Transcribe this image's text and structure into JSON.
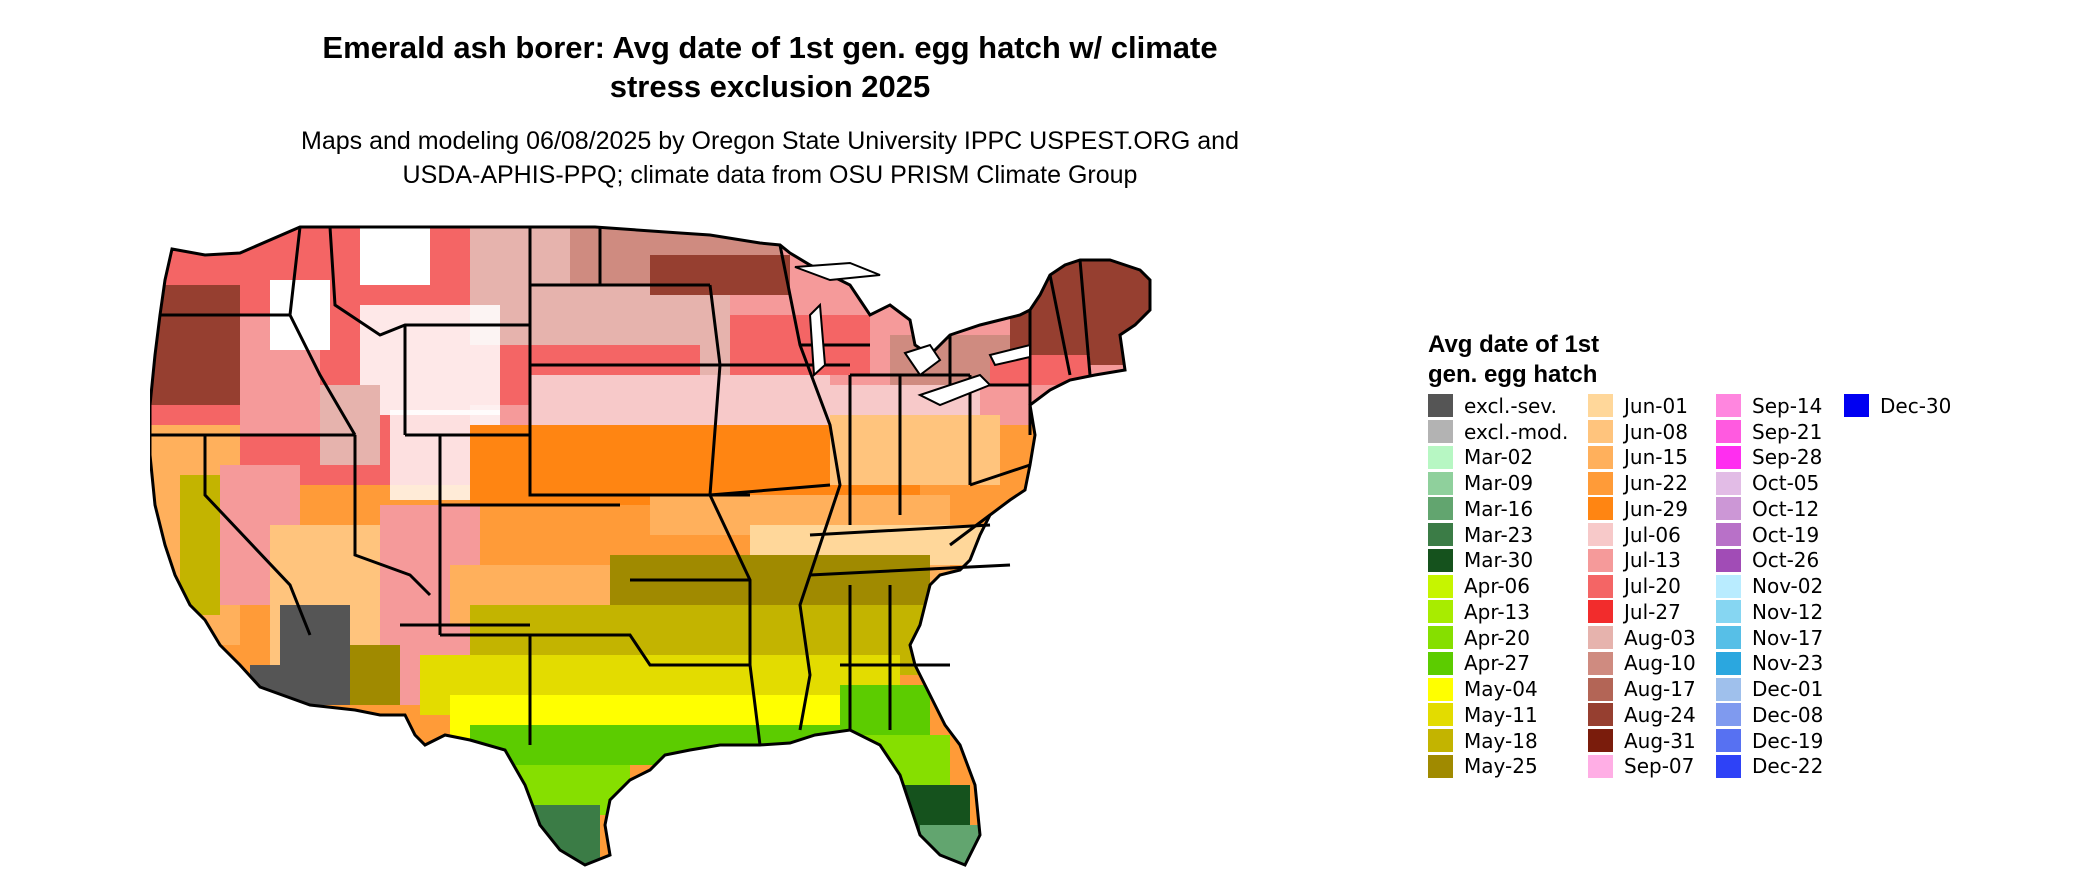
{
  "title": {
    "line1": "Emerald ash borer: Avg date of 1st gen. egg hatch w/ climate",
    "line2": "stress exclusion 2025"
  },
  "subtitle": {
    "line1": "Maps and modeling 06/08/2025 by Oregon State University IPPC USPEST.ORG and",
    "line2": "USDA-APHIS-PPQ; climate data from OSU PRISM Climate Group"
  },
  "legend": {
    "title_line1": "Avg date of 1st",
    "title_line2": "gen. egg hatch",
    "items": [
      {
        "label": "excl.-sev.",
        "color": "#555555"
      },
      {
        "label": "excl.-mod.",
        "color": "#b3b3b3"
      },
      {
        "label": "Mar-02",
        "color": "#b7f7c3"
      },
      {
        "label": "Mar-09",
        "color": "#8fd09c"
      },
      {
        "label": "Mar-16",
        "color": "#62a56f"
      },
      {
        "label": "Mar-23",
        "color": "#3b7c46"
      },
      {
        "label": "Mar-30",
        "color": "#15521d"
      },
      {
        "label": "Apr-06",
        "color": "#c6f500"
      },
      {
        "label": "Apr-13",
        "color": "#a8ec00"
      },
      {
        "label": "Apr-20",
        "color": "#86df00"
      },
      {
        "label": "Apr-27",
        "color": "#5ccc00"
      },
      {
        "label": "May-04",
        "color": "#ffff00"
      },
      {
        "label": "May-11",
        "color": "#e3dc00"
      },
      {
        "label": "May-18",
        "color": "#c3b400"
      },
      {
        "label": "May-25",
        "color": "#a08a00"
      },
      {
        "label": "Jun-01",
        "color": "#ffd79a"
      },
      {
        "label": "Jun-08",
        "color": "#ffc47d"
      },
      {
        "label": "Jun-15",
        "color": "#ffb05c"
      },
      {
        "label": "Jun-22",
        "color": "#ff9b38"
      },
      {
        "label": "Jun-29",
        "color": "#ff8512"
      },
      {
        "label": "Jul-06",
        "color": "#f7c9c9"
      },
      {
        "label": "Jul-13",
        "color": "#f59a9a"
      },
      {
        "label": "Jul-20",
        "color": "#f46565"
      },
      {
        "label": "Jul-27",
        "color": "#f22c2c"
      },
      {
        "label": "Aug-03",
        "color": "#e6b3ad"
      },
      {
        "label": "Aug-10",
        "color": "#cf8b80"
      },
      {
        "label": "Aug-17",
        "color": "#b36556"
      },
      {
        "label": "Aug-24",
        "color": "#963f30"
      },
      {
        "label": "Aug-31",
        "color": "#7a1c0c"
      },
      {
        "label": "Sep-07",
        "color": "#ffaee5"
      },
      {
        "label": "Sep-14",
        "color": "#ff86df"
      },
      {
        "label": "Sep-21",
        "color": "#ff5ae0"
      },
      {
        "label": "Sep-28",
        "color": "#ff2ef0"
      },
      {
        "label": "Oct-05",
        "color": "#e2bce6"
      },
      {
        "label": "Oct-12",
        "color": "#cc97d6"
      },
      {
        "label": "Oct-19",
        "color": "#b871c8"
      },
      {
        "label": "Oct-26",
        "color": "#a14cb6"
      },
      {
        "label": "Nov-02",
        "color": "#b9ecff"
      },
      {
        "label": "Nov-12",
        "color": "#86d6f2"
      },
      {
        "label": "Nov-17",
        "color": "#57bfe7"
      },
      {
        "label": "Nov-23",
        "color": "#2ba7df"
      },
      {
        "label": "Dec-01",
        "color": "#9fc0ec"
      },
      {
        "label": "Dec-08",
        "color": "#7f9aef"
      },
      {
        "label": "Dec-19",
        "color": "#5771f2"
      },
      {
        "label": "Dec-22",
        "color": "#2e42f7"
      },
      {
        "label": "Dec-30",
        "color": "#0000f2"
      }
    ]
  }
}
